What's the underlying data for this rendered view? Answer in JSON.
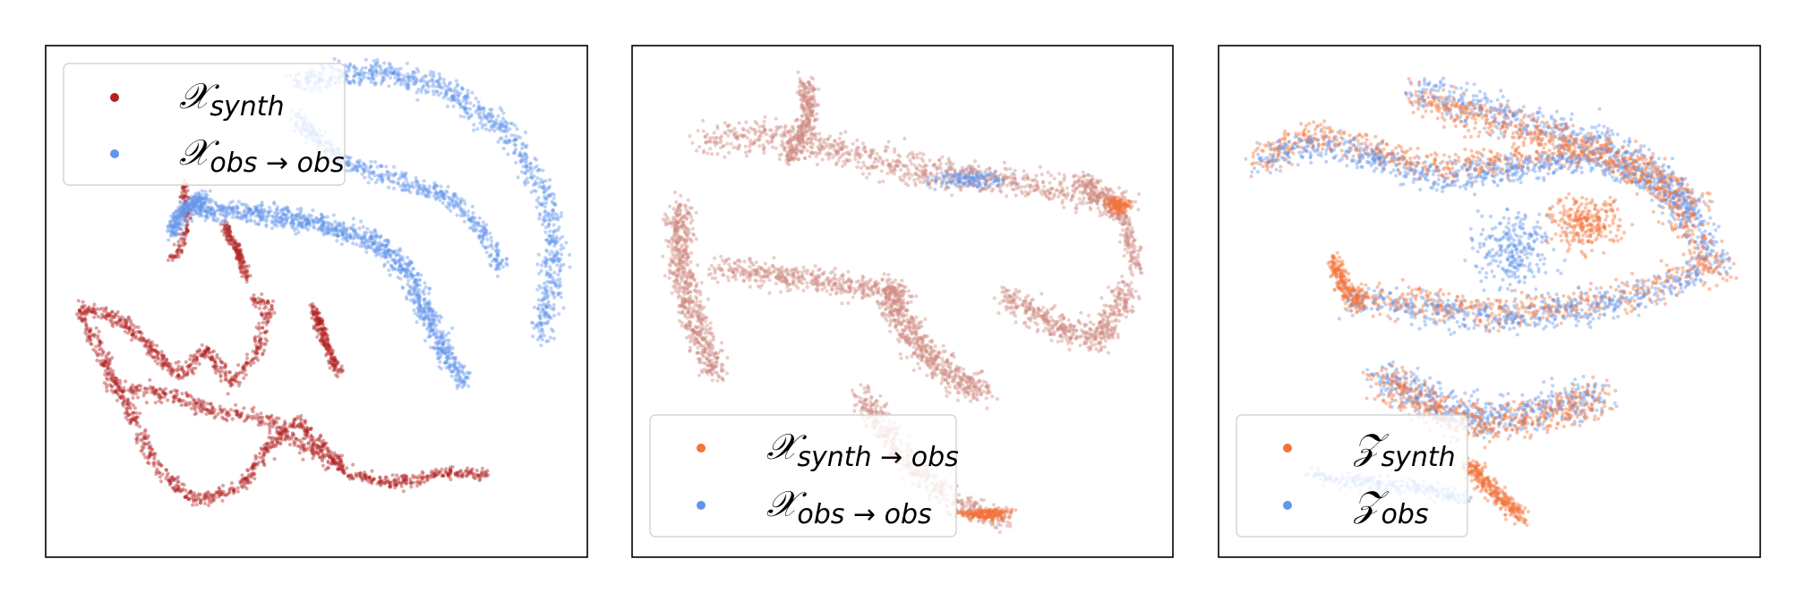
{
  "figure": {
    "chart_data": [
      {
        "type": "scatter",
        "title": "",
        "xlabel": "",
        "ylabel": "",
        "grid": false,
        "axes_ticks": false,
        "legend_position": "upper-left",
        "series": [
          {
            "name": "X_synth",
            "symbol": "𝒳",
            "subscript": "synth",
            "color": "#b22222"
          },
          {
            "name": "X_obs→obs",
            "symbol": "𝒳",
            "subscript": "obs → obs",
            "color": "#6495ed"
          }
        ]
      },
      {
        "type": "scatter",
        "title": "",
        "xlabel": "",
        "ylabel": "",
        "grid": false,
        "axes_ticks": false,
        "legend_position": "lower-left",
        "series": [
          {
            "name": "X_synth→obs",
            "symbol": "𝒳",
            "subscript": "synth → obs",
            "color": "#f4733a"
          },
          {
            "name": "X_obs→obs",
            "symbol": "𝒳",
            "subscript": "obs → obs",
            "color": "#6495ed"
          }
        ]
      },
      {
        "type": "scatter",
        "title": "",
        "xlabel": "",
        "ylabel": "",
        "grid": false,
        "axes_ticks": false,
        "legend_position": "lower-left",
        "series": [
          {
            "name": "Z_synth",
            "symbol": "𝒵",
            "subscript": "synth",
            "color": "#f4733a"
          },
          {
            "name": "Z_obs",
            "symbol": "𝒵",
            "subscript": "obs",
            "color": "#6495ed"
          }
        ]
      }
    ]
  }
}
